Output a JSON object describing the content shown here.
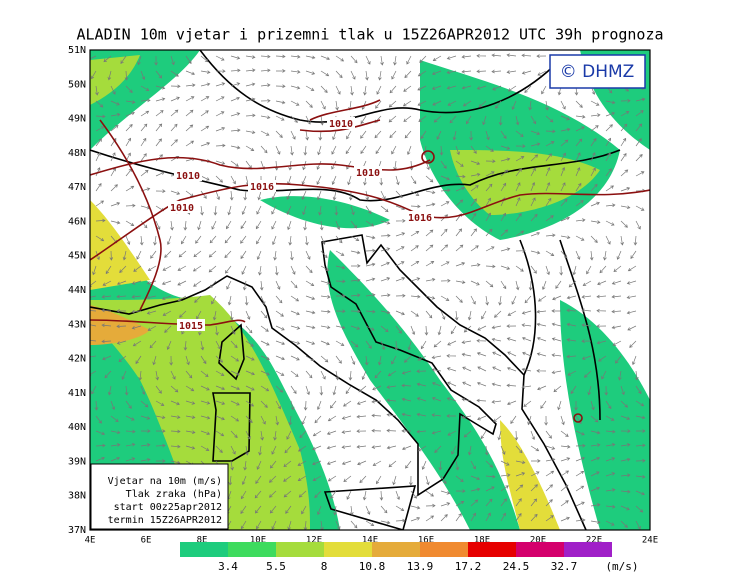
{
  "title": "ALADIN 10m vjetar i prizemni tlak u 15Z26APR2012 UTC 39h prognoza",
  "copyright": "© DHMZ",
  "lat_labels": [
    "51N",
    "50N",
    "49N",
    "48N",
    "47N",
    "46N",
    "45N",
    "44N",
    "43N",
    "42N",
    "41N",
    "40N",
    "39N",
    "38N",
    "37N"
  ],
  "lon_labels": [
    "4E",
    "6E",
    "8E",
    "10E",
    "12E",
    "14E",
    "16E",
    "18E",
    "20E",
    "22E",
    "24E"
  ],
  "legend": {
    "lines": [
      "Vjetar na 10m (m/s)",
      "Tlak zraka (hPa)",
      "start 00z25apr2012",
      "termin 15Z26APR2012"
    ]
  },
  "isobar_labels": [
    "1010",
    "1010",
    "1016",
    "1010",
    "1010",
    "1016",
    "1015"
  ],
  "colorbar": {
    "labels": [
      "3.4",
      "5.5",
      "8",
      "10.8",
      "13.9",
      "17.2",
      "24.5",
      "32.7"
    ],
    "colors": [
      "#1ecc7d",
      "#3edb5e",
      "#a5dc3c",
      "#e3dd3a",
      "#e5ab3a",
      "#f08a30",
      "#e60000",
      "#d4006c",
      "#a020c8"
    ],
    "unit": "(m/s)"
  }
}
